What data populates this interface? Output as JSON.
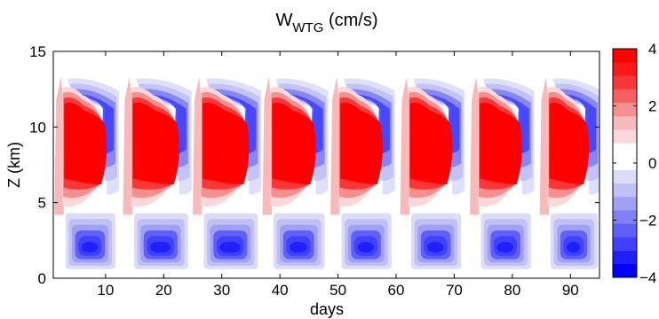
{
  "chart_data": {
    "type": "heatmap",
    "title_main": "W",
    "title_sub": "WTG",
    "title_unit": " (cm/s)",
    "xlabel": "days",
    "ylabel": "Z (km)",
    "xlim": [
      1,
      95
    ],
    "ylim": [
      0,
      15
    ],
    "x_ticks": [
      10,
      20,
      30,
      40,
      50,
      60,
      70,
      80,
      90
    ],
    "y_ticks": [
      0,
      5,
      10,
      15
    ],
    "colorbar": {
      "range": [
        -4,
        4
      ],
      "ticks": [
        -4,
        -2,
        0,
        2,
        4
      ],
      "colors": [
        "#0000ff",
        "#2020ff",
        "#4040ff",
        "#6060f8",
        "#8080f5",
        "#a0a0f4",
        "#c0c0f6",
        "#dcdcf8",
        "#ffffff",
        "#ffffff",
        "#fad8d8",
        "#f7baba",
        "#f59090",
        "#f56060",
        "#f83838",
        "#ff1818",
        "#ff0000"
      ]
    },
    "cycles": [
      {
        "start": 2.5,
        "end": 12.0
      },
      {
        "start": 14.3,
        "end": 24.5
      },
      {
        "start": 26.3,
        "end": 36.5
      },
      {
        "start": 38.3,
        "end": 48.0
      },
      {
        "start": 50.0,
        "end": 59.5
      },
      {
        "start": 62.0,
        "end": 71.5
      },
      {
        "start": 74.0,
        "end": 83.5
      },
      {
        "start": 86.0,
        "end": 95.0
      }
    ]
  }
}
